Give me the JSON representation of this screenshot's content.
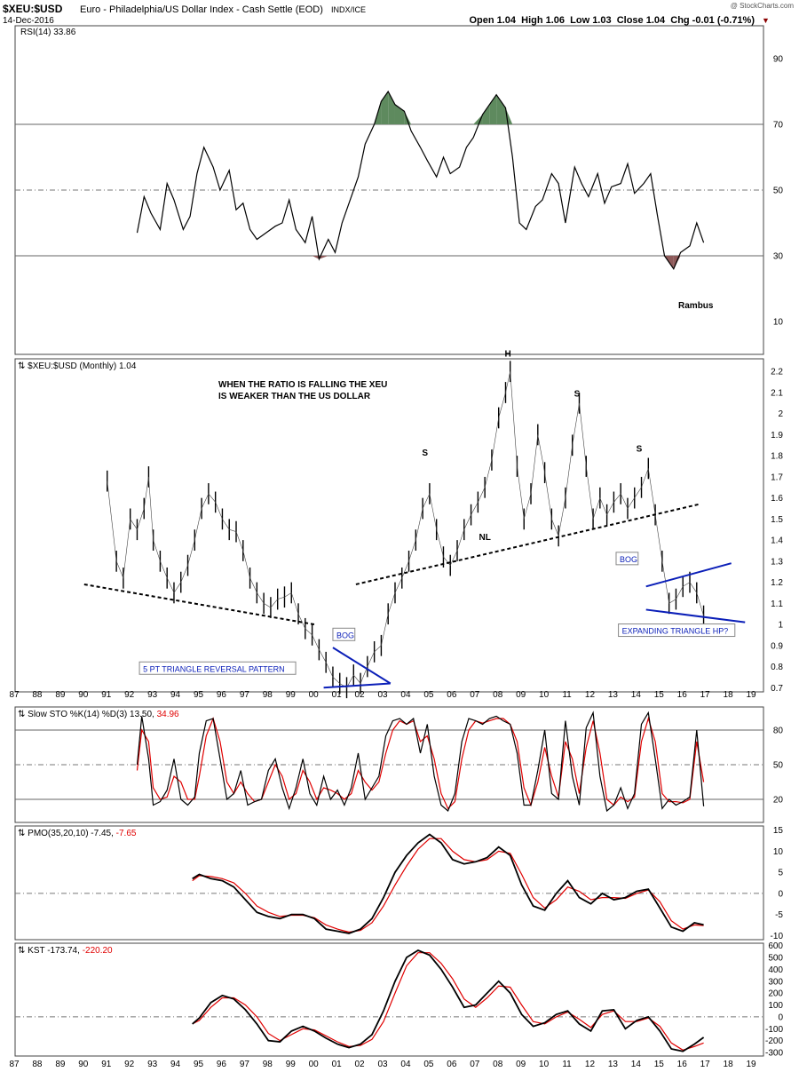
{
  "header": {
    "symbol": "$XEU:$USD",
    "name": "Euro - Philadelphia/US Dollar Index - Cash Settle (EOD)",
    "exchange": "INDX/ICE",
    "date": "14-Dec-2016",
    "quote_line": "Open 1.04  High 1.06  Low 1.03  Close 1.04  Chg -0.01 (-0.71%)",
    "watermark": "@ StockCharts.com"
  },
  "colors": {
    "price": "#000000",
    "signal": "#e00000",
    "trendline": "#000000",
    "pattern_blue": "#0b1fb8",
    "overbought_fill": "#5e8a5e",
    "oversold_fill": "#8e5a5a",
    "grid": "#888888"
  },
  "x_axis": {
    "labels": [
      "87",
      "88",
      "89",
      "90",
      "91",
      "92",
      "93",
      "94",
      "95",
      "96",
      "97",
      "98",
      "99",
      "00",
      "01",
      "02",
      "03",
      "04",
      "05",
      "06",
      "07",
      "08",
      "09",
      "10",
      "11",
      "12",
      "13",
      "14",
      "15",
      "16",
      "17",
      "18",
      "19"
    ]
  },
  "chart_data": [
    {
      "type": "line",
      "panel": "rsi",
      "label": "RSI(14) 33.86",
      "ylim": [
        0,
        100
      ],
      "y_ticks": [
        90,
        70,
        50,
        30,
        10
      ],
      "reference_lines": [
        70,
        50,
        30
      ],
      "annotation": "Rambus",
      "x": [
        1992.3,
        1992.6,
        1992.9,
        1993.3,
        1993.6,
        1993.9,
        1994.3,
        1994.6,
        1994.9,
        1995.2,
        1995.6,
        1995.9,
        1996.3,
        1996.6,
        1996.9,
        1997.2,
        1997.5,
        1997.9,
        1998.3,
        1998.6,
        1998.9,
        1999.2,
        1999.6,
        1999.9,
        2000.2,
        2000.6,
        2000.9,
        2001.2,
        2001.6,
        2001.9,
        2002.2,
        2002.6,
        2002.9,
        2003.2,
        2003.5,
        2003.9,
        2004.2,
        2004.6,
        2004.9,
        2005.3,
        2005.6,
        2005.9,
        2006.3,
        2006.6,
        2006.9,
        2007.3,
        2007.6,
        2007.9,
        2008.3,
        2008.6,
        2008.9,
        2009.2,
        2009.6,
        2009.9,
        2010.3,
        2010.6,
        2010.9,
        2011.3,
        2011.6,
        2011.9,
        2012.3,
        2012.6,
        2012.9,
        2013.3,
        2013.6,
        2013.9,
        2014.3,
        2014.6,
        2014.9,
        2015.2,
        2015.6,
        2015.9,
        2016.3,
        2016.6,
        2016.9
      ],
      "values": [
        37,
        48,
        43,
        38,
        52,
        47,
        38,
        42,
        55,
        63,
        57,
        50,
        56,
        44,
        46,
        38,
        35,
        37,
        39,
        40,
        47,
        38,
        34,
        42,
        29,
        35,
        31,
        40,
        48,
        54,
        64,
        70,
        77,
        80,
        76,
        74,
        68,
        63,
        59,
        54,
        60,
        55,
        57,
        63,
        66,
        73,
        76,
        79,
        75,
        60,
        40,
        38,
        45,
        47,
        55,
        52,
        40,
        57,
        52,
        48,
        55,
        46,
        51,
        52,
        58,
        49,
        52,
        55,
        42,
        30,
        26,
        31,
        33,
        40,
        34
      ]
    },
    {
      "type": "line",
      "panel": "price",
      "label": "$XEU:$USD (Monthly) 1.04",
      "ylim": [
        0.68,
        2.26
      ],
      "y_ticks": [
        2.2,
        2.1,
        2.0,
        1.9,
        1.8,
        1.7,
        1.6,
        1.5,
        1.4,
        1.3,
        1.2,
        1.1,
        1.0,
        0.9,
        0.8,
        0.7
      ],
      "x": [
        1991.0,
        1991.4,
        1991.7,
        1992.0,
        1992.3,
        1992.6,
        1992.8,
        1993.0,
        1993.3,
        1993.6,
        1993.9,
        1994.2,
        1994.5,
        1994.8,
        1995.1,
        1995.4,
        1995.7,
        1996.0,
        1996.3,
        1996.6,
        1996.9,
        1997.2,
        1997.5,
        1997.8,
        1998.1,
        1998.4,
        1998.7,
        1999.0,
        1999.3,
        1999.6,
        1999.9,
        2000.2,
        2000.5,
        2000.8,
        2001.1,
        2001.4,
        2001.7,
        2002.0,
        2002.3,
        2002.6,
        2002.9,
        2003.2,
        2003.5,
        2003.8,
        2004.1,
        2004.4,
        2004.7,
        2005.0,
        2005.3,
        2005.6,
        2005.9,
        2006.2,
        2006.5,
        2006.8,
        2007.1,
        2007.4,
        2007.7,
        2008.0,
        2008.3,
        2008.5,
        2008.8,
        2009.1,
        2009.4,
        2009.7,
        2010.0,
        2010.3,
        2010.6,
        2010.9,
        2011.2,
        2011.5,
        2011.8,
        2012.1,
        2012.4,
        2012.7,
        2013.0,
        2013.3,
        2013.6,
        2013.9,
        2014.2,
        2014.5,
        2014.8,
        2015.1,
        2015.4,
        2015.7,
        2016.0,
        2016.3,
        2016.6,
        2016.9
      ],
      "values": [
        1.68,
        1.3,
        1.22,
        1.5,
        1.45,
        1.55,
        1.7,
        1.4,
        1.3,
        1.22,
        1.15,
        1.2,
        1.28,
        1.4,
        1.55,
        1.62,
        1.58,
        1.5,
        1.45,
        1.44,
        1.35,
        1.22,
        1.15,
        1.1,
        1.08,
        1.12,
        1.13,
        1.15,
        1.05,
        0.98,
        0.95,
        0.88,
        0.82,
        0.75,
        0.72,
        0.7,
        0.76,
        0.72,
        0.8,
        0.87,
        0.9,
        1.05,
        1.15,
        1.22,
        1.3,
        1.4,
        1.55,
        1.62,
        1.45,
        1.32,
        1.28,
        1.35,
        1.45,
        1.52,
        1.58,
        1.65,
        1.78,
        1.98,
        2.1,
        2.2,
        1.75,
        1.5,
        1.62,
        1.9,
        1.72,
        1.5,
        1.42,
        1.6,
        1.85,
        2.05,
        1.75,
        1.5,
        1.6,
        1.52,
        1.58,
        1.62,
        1.55,
        1.6,
        1.65,
        1.74,
        1.52,
        1.3,
        1.1,
        1.12,
        1.18,
        1.2,
        1.15,
        1.04
      ],
      "trendlines": [
        {
          "x1": 1990.0,
          "y1": 1.19,
          "x2": 2000.0,
          "y2": 1.0,
          "style": "dashed",
          "color": "#000000"
        },
        {
          "x1": 2001.8,
          "y1": 1.19,
          "x2": 2016.7,
          "y2": 1.57,
          "style": "dashed",
          "color": "#000000"
        },
        {
          "x1": 2000.4,
          "y1": 0.7,
          "x2": 2003.3,
          "y2": 0.72,
          "style": "solid",
          "color": "#0b1fb8"
        },
        {
          "x1": 2000.8,
          "y1": 0.89,
          "x2": 2003.3,
          "y2": 0.72,
          "style": "solid",
          "color": "#0b1fb8"
        },
        {
          "x1": 2014.4,
          "y1": 1.18,
          "x2": 2018.1,
          "y2": 1.29,
          "style": "solid",
          "color": "#0b1fb8"
        },
        {
          "x1": 2014.4,
          "y1": 1.07,
          "x2": 2018.7,
          "y2": 1.01,
          "style": "solid",
          "color": "#0b1fb8"
        }
      ],
      "labels": [
        {
          "text": "H",
          "x": 2008.4,
          "y": 2.27,
          "kind": "black"
        },
        {
          "text": "S",
          "x": 2004.8,
          "y": 1.8,
          "kind": "black"
        },
        {
          "text": "S",
          "x": 2011.4,
          "y": 2.08,
          "kind": "black"
        },
        {
          "text": "S",
          "x": 2014.1,
          "y": 1.82,
          "kind": "black"
        },
        {
          "text": "NL",
          "x": 2007.4,
          "y": 1.4,
          "kind": "black"
        },
        {
          "text": "BOG",
          "x": 2000.8,
          "y": 0.94,
          "kind": "box"
        },
        {
          "text": "BOG",
          "x": 2013.1,
          "y": 1.3,
          "kind": "box"
        },
        {
          "text": "5 PT TRIANGLE REVERSAL PATTERN",
          "x": 1992.4,
          "y": 0.78,
          "kind": "box"
        },
        {
          "text": "EXPANDING TRIANGLE HP?",
          "x": 2013.2,
          "y": 0.96,
          "kind": "box"
        }
      ],
      "note_lines": [
        "WHEN THE RATIO IS FALLING THE XEU",
        "IS WEAKER THAN THE US DOLLAR"
      ]
    },
    {
      "type": "line",
      "panel": "sto",
      "label_main": "Slow STO %K(14) %D(3) 13.50,",
      "label_signal": "34.96",
      "ylim": [
        0,
        100
      ],
      "y_ticks": [
        80,
        50,
        20
      ],
      "reference_lines": [
        80,
        50,
        20
      ],
      "x": [
        1992.3,
        1992.5,
        1992.8,
        1993.0,
        1993.3,
        1993.6,
        1993.9,
        1994.2,
        1994.5,
        1994.8,
        1995.0,
        1995.3,
        1995.6,
        1995.9,
        1996.2,
        1996.5,
        1996.8,
        1997.1,
        1997.4,
        1997.7,
        1998.0,
        1998.3,
        1998.6,
        1998.9,
        1999.2,
        1999.5,
        1999.8,
        2000.1,
        2000.4,
        2000.7,
        2001.0,
        2001.3,
        2001.6,
        2001.9,
        2002.2,
        2002.5,
        2002.8,
        2003.1,
        2003.4,
        2003.7,
        2004.0,
        2004.3,
        2004.6,
        2004.9,
        2005.2,
        2005.5,
        2005.8,
        2006.1,
        2006.4,
        2006.7,
        2007.0,
        2007.3,
        2007.6,
        2007.9,
        2008.2,
        2008.5,
        2008.8,
        2009.1,
        2009.4,
        2009.7,
        2010.0,
        2010.3,
        2010.6,
        2010.9,
        2011.2,
        2011.5,
        2011.8,
        2012.1,
        2012.4,
        2012.7,
        2013.0,
        2013.3,
        2013.6,
        2013.9,
        2014.2,
        2014.5,
        2014.8,
        2015.1,
        2015.4,
        2015.7,
        2016.0,
        2016.3,
        2016.6,
        2016.9
      ],
      "k": [
        50,
        92,
        55,
        15,
        18,
        28,
        55,
        20,
        15,
        22,
        60,
        88,
        90,
        55,
        20,
        25,
        45,
        15,
        18,
        20,
        45,
        55,
        30,
        12,
        30,
        55,
        25,
        15,
        40,
        20,
        28,
        15,
        30,
        60,
        20,
        30,
        40,
        75,
        88,
        90,
        85,
        90,
        60,
        85,
        40,
        15,
        10,
        25,
        70,
        90,
        88,
        85,
        90,
        92,
        88,
        85,
        60,
        15,
        15,
        45,
        80,
        25,
        20,
        88,
        40,
        15,
        82,
        95,
        40,
        10,
        15,
        30,
        12,
        25,
        85,
        95,
        55,
        12,
        20,
        15,
        18,
        22,
        80,
        14
      ],
      "d": [
        45,
        80,
        70,
        30,
        20,
        22,
        40,
        35,
        20,
        20,
        40,
        75,
        90,
        70,
        35,
        25,
        35,
        25,
        18,
        20,
        35,
        50,
        40,
        20,
        25,
        45,
        35,
        20,
        30,
        28,
        25,
        20,
        25,
        45,
        35,
        28,
        35,
        60,
        80,
        88,
        85,
        88,
        70,
        75,
        55,
        25,
        12,
        18,
        55,
        80,
        88,
        86,
        88,
        90,
        90,
        85,
        70,
        30,
        15,
        35,
        65,
        40,
        22,
        70,
        55,
        25,
        65,
        88,
        60,
        20,
        15,
        22,
        18,
        22,
        70,
        90,
        70,
        25,
        18,
        18,
        17,
        20,
        70,
        35
      ]
    },
    {
      "type": "line",
      "panel": "pmo",
      "label_main": "PMO(35,20,10) -7.45,",
      "label_signal": "-7.65",
      "ylim": [
        -11,
        16
      ],
      "y_ticks": [
        15,
        10,
        5,
        0,
        -5,
        -10
      ],
      "reference_lines": [
        0
      ],
      "x": [
        1994.7,
        1995.0,
        1995.5,
        1996.0,
        1996.5,
        1997.0,
        1997.5,
        1998.0,
        1998.5,
        1999.0,
        1999.5,
        2000.0,
        2000.5,
        2001.0,
        2001.5,
        2002.0,
        2002.5,
        2003.0,
        2003.5,
        2004.0,
        2004.5,
        2005.0,
        2005.5,
        2006.0,
        2006.5,
        2007.0,
        2007.5,
        2008.0,
        2008.5,
        2009.0,
        2009.5,
        2010.0,
        2010.5,
        2011.0,
        2011.5,
        2012.0,
        2012.5,
        2013.0,
        2013.5,
        2014.0,
        2014.5,
        2015.0,
        2015.5,
        2016.0,
        2016.5,
        2016.9
      ],
      "pmo": [
        3.5,
        4.5,
        3.5,
        3.0,
        1.5,
        -1.5,
        -4.5,
        -5.5,
        -6.0,
        -5.0,
        -5.0,
        -6.0,
        -8.5,
        -9.0,
        -9.5,
        -8.5,
        -6.0,
        -1.0,
        5.0,
        9.0,
        12.0,
        14.0,
        12.0,
        8.0,
        7.0,
        7.5,
        8.5,
        11.0,
        9.0,
        2.0,
        -3.0,
        -4.0,
        0.0,
        3.0,
        -1.0,
        -2.5,
        0.0,
        -1.5,
        -1.0,
        0.5,
        1.0,
        -3.5,
        -8.0,
        -9.0,
        -7.0,
        -7.45
      ],
      "signal": [
        3.0,
        4.2,
        4.0,
        3.5,
        2.5,
        0.0,
        -3.0,
        -4.5,
        -5.5,
        -5.2,
        -5.2,
        -5.8,
        -7.5,
        -8.5,
        -9.2,
        -8.8,
        -7.0,
        -3.0,
        2.0,
        6.5,
        10.5,
        13.0,
        13.0,
        10.0,
        8.0,
        7.5,
        8.0,
        10.0,
        9.5,
        4.5,
        -1.0,
        -3.5,
        -1.5,
        1.5,
        0.5,
        -1.5,
        -1.0,
        -1.0,
        -1.2,
        0.0,
        0.8,
        -2.0,
        -6.5,
        -8.5,
        -7.5,
        -7.65
      ]
    },
    {
      "type": "line",
      "panel": "kst",
      "label_main": "KST -173.74,",
      "label_signal": "-220.20",
      "ylim": [
        -330,
        620
      ],
      "y_ticks": [
        600,
        500,
        400,
        300,
        200,
        100,
        0,
        -100,
        -200,
        -300
      ],
      "reference_lines": [
        0
      ],
      "x": [
        1994.7,
        1995.0,
        1995.5,
        1996.0,
        1996.5,
        1997.0,
        1997.5,
        1998.0,
        1998.5,
        1999.0,
        1999.5,
        2000.0,
        2000.5,
        2001.0,
        2001.5,
        2002.0,
        2002.5,
        2003.0,
        2003.5,
        2004.0,
        2004.5,
        2005.0,
        2005.5,
        2006.0,
        2006.5,
        2007.0,
        2007.5,
        2008.0,
        2008.5,
        2009.0,
        2009.5,
        2010.0,
        2010.5,
        2011.0,
        2011.5,
        2012.0,
        2012.5,
        2013.0,
        2013.5,
        2014.0,
        2014.5,
        2015.0,
        2015.5,
        2016.0,
        2016.5,
        2016.9
      ],
      "kst": [
        -60,
        -10,
        120,
        180,
        150,
        60,
        -60,
        -200,
        -210,
        -120,
        -80,
        -120,
        -180,
        -230,
        -260,
        -230,
        -150,
        50,
        300,
        500,
        560,
        520,
        400,
        250,
        80,
        100,
        200,
        300,
        200,
        20,
        -80,
        -50,
        20,
        50,
        -60,
        -120,
        50,
        60,
        -100,
        -30,
        0,
        -120,
        -270,
        -290,
        -230,
        -173
      ],
      "signal": [
        -60,
        -30,
        80,
        160,
        160,
        100,
        0,
        -140,
        -200,
        -150,
        -100,
        -110,
        -160,
        -210,
        -250,
        -240,
        -190,
        -40,
        200,
        430,
        540,
        540,
        450,
        320,
        150,
        80,
        160,
        260,
        250,
        100,
        -40,
        -60,
        0,
        40,
        -20,
        -90,
        20,
        50,
        -40,
        -40,
        -10,
        -80,
        -220,
        -280,
        -250,
        -220
      ]
    }
  ]
}
